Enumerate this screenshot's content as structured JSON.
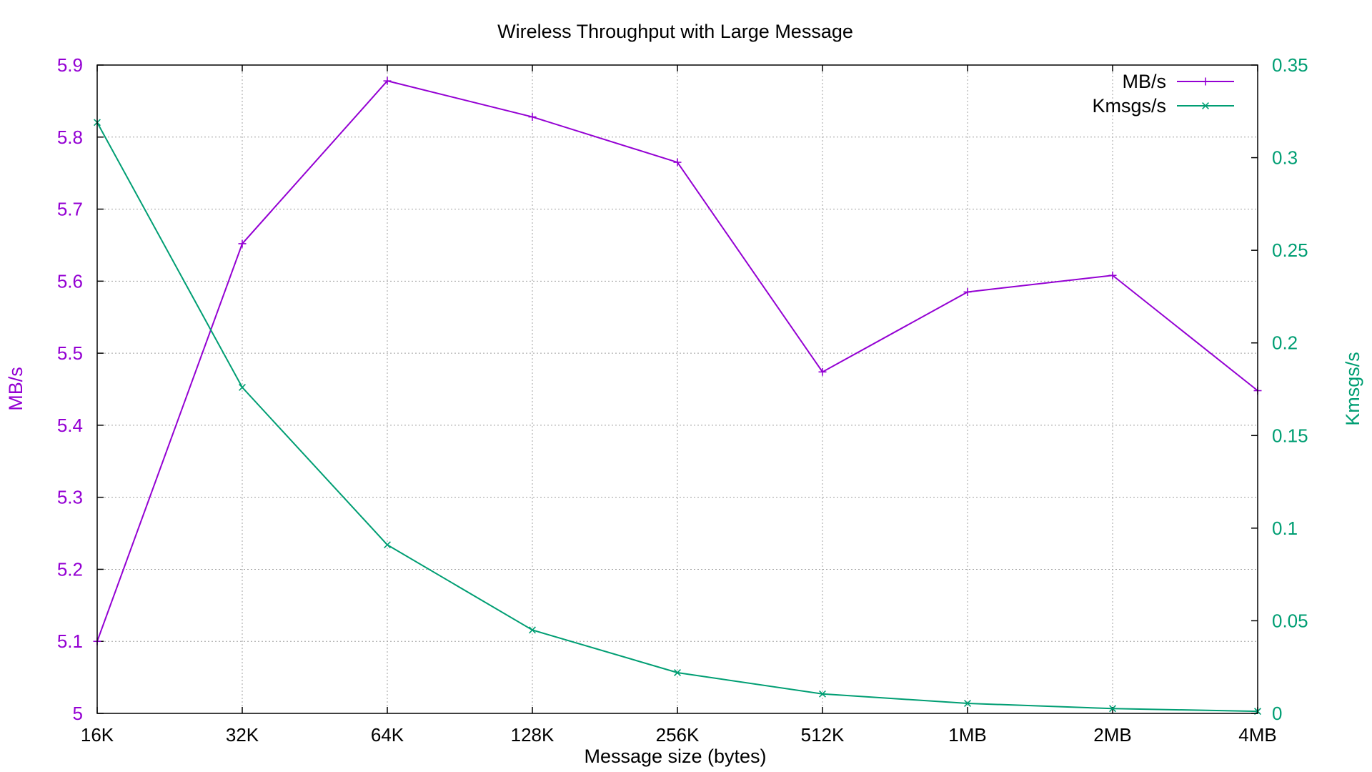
{
  "chart_data": {
    "type": "line",
    "title": "Wireless Throughput with Large Message",
    "xlabel": "Message size (bytes)",
    "ylabel": "MB/s",
    "y2label": "Kmsgs/s",
    "categories": [
      "16K",
      "32K",
      "64K",
      "128K",
      "256K",
      "512K",
      "1MB",
      "2MB",
      "4MB"
    ],
    "ylim": [
      5,
      5.9
    ],
    "y2lim": [
      0,
      0.35
    ],
    "yticks": [
      "5",
      "5.1",
      "5.2",
      "5.3",
      "5.4",
      "5.5",
      "5.6",
      "5.7",
      "5.8",
      "5.9"
    ],
    "y2ticks": [
      "0",
      "0.05",
      "0.1",
      "0.15",
      "0.2",
      "0.25",
      "0.3",
      "0.35"
    ],
    "grid": true,
    "legend_position": "top-right",
    "series": [
      {
        "name": "MB/s",
        "axis": "left",
        "color": "#9400d3",
        "marker": "plus",
        "values": [
          5.1,
          5.652,
          5.878,
          5.828,
          5.765,
          5.474,
          5.585,
          5.608,
          5.448
        ]
      },
      {
        "name": "Kmsgs/s",
        "axis": "right",
        "color": "#009e73",
        "marker": "cross",
        "values": [
          0.319,
          0.176,
          0.091,
          0.045,
          0.022,
          0.0105,
          0.0054,
          0.0026,
          0.0011
        ]
      }
    ]
  }
}
